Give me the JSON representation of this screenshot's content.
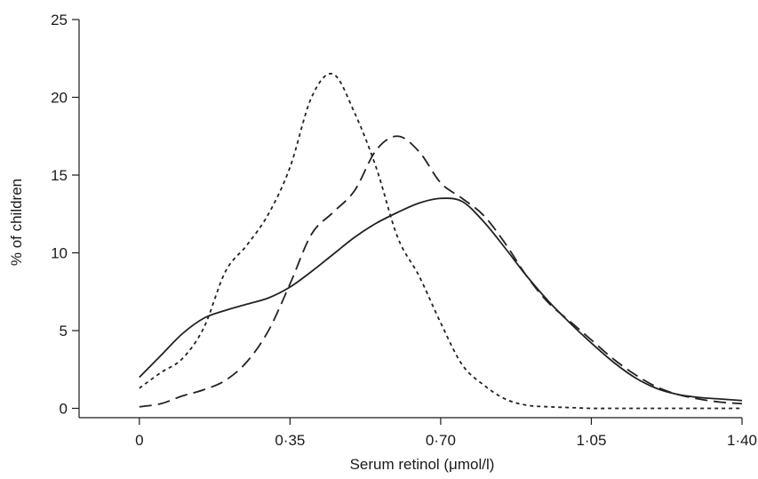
{
  "chart_data": {
    "type": "line",
    "xlabel": "Serum retinol (μmol/l)",
    "ylabel": "% of children",
    "xlim": [
      -0.14,
      1.4
    ],
    "ylim": [
      -0.6,
      25
    ],
    "x_ticks": [
      {
        "value": 0,
        "label": "0"
      },
      {
        "value": 0.35,
        "label": "0·35"
      },
      {
        "value": 0.7,
        "label": "0·70"
      },
      {
        "value": 1.05,
        "label": "1·05"
      },
      {
        "value": 1.4,
        "label": "1·40"
      }
    ],
    "y_ticks": [
      {
        "value": 0,
        "label": "0"
      },
      {
        "value": 5,
        "label": "5"
      },
      {
        "value": 10,
        "label": "10"
      },
      {
        "value": 15,
        "label": "15"
      },
      {
        "value": 20,
        "label": "20"
      },
      {
        "value": 25,
        "label": "25"
      }
    ],
    "grid": false,
    "legend": "none",
    "series": [
      {
        "style": "solid",
        "color": "#222222",
        "x": [
          0,
          0.05,
          0.1,
          0.15,
          0.2,
          0.25,
          0.3,
          0.35,
          0.4,
          0.45,
          0.5,
          0.55,
          0.6,
          0.65,
          0.7,
          0.75,
          0.8,
          0.85,
          0.9,
          0.95,
          1.0,
          1.05,
          1.1,
          1.15,
          1.2,
          1.25,
          1.3,
          1.35,
          1.4
        ],
        "y": [
          2.0,
          3.4,
          4.8,
          5.8,
          6.3,
          6.7,
          7.1,
          7.8,
          8.8,
          9.9,
          11.0,
          11.9,
          12.6,
          13.2,
          13.5,
          13.3,
          12.0,
          10.3,
          8.5,
          6.9,
          5.5,
          4.2,
          3.0,
          2.0,
          1.3,
          0.9,
          0.7,
          0.6,
          0.5
        ]
      },
      {
        "style": "dashed",
        "color": "#222222",
        "x": [
          0,
          0.05,
          0.1,
          0.15,
          0.2,
          0.25,
          0.3,
          0.35,
          0.4,
          0.45,
          0.5,
          0.55,
          0.6,
          0.65,
          0.7,
          0.75,
          0.8,
          0.85,
          0.9,
          0.95,
          1.0,
          1.05,
          1.1,
          1.15,
          1.2,
          1.25,
          1.3,
          1.35,
          1.4
        ],
        "y": [
          0.1,
          0.3,
          0.8,
          1.2,
          1.8,
          3.0,
          5.0,
          8.0,
          11.2,
          12.6,
          14.0,
          16.6,
          17.5,
          16.5,
          14.5,
          13.5,
          12.4,
          10.6,
          8.5,
          6.8,
          5.6,
          4.4,
          3.2,
          2.2,
          1.4,
          0.9,
          0.6,
          0.4,
          0.3
        ]
      },
      {
        "style": "dotted",
        "color": "#222222",
        "x": [
          0,
          0.05,
          0.1,
          0.15,
          0.2,
          0.25,
          0.3,
          0.35,
          0.4,
          0.45,
          0.5,
          0.55,
          0.6,
          0.65,
          0.7,
          0.75,
          0.8,
          0.85,
          0.9,
          0.95,
          1.0,
          1.05,
          1.1,
          1.15,
          1.2,
          1.25,
          1.3,
          1.35,
          1.4
        ],
        "y": [
          1.3,
          2.3,
          3.2,
          5.2,
          8.8,
          10.5,
          12.5,
          15.5,
          20.0,
          21.5,
          19.0,
          15.5,
          11.0,
          8.5,
          5.5,
          2.8,
          1.5,
          0.6,
          0.2,
          0.1,
          0.05,
          0.0,
          0.0,
          0.0,
          0.0,
          0.0,
          0.0,
          0.0,
          0.0
        ]
      }
    ]
  }
}
